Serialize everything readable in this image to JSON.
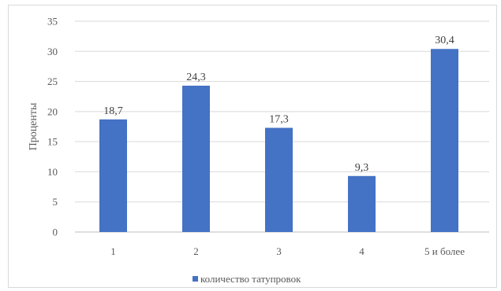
{
  "chart_data": {
    "type": "bar",
    "categories": [
      "1",
      "2",
      "3",
      "4",
      "5 и более"
    ],
    "series": [
      {
        "name": "количество татупровок",
        "values": [
          18.7,
          24.3,
          17.3,
          9.3,
          30.4
        ],
        "color": "#4472c4"
      }
    ],
    "data_labels": [
      "18,7",
      "24,3",
      "17,3",
      "9,3",
      "30,4"
    ],
    "ylabel": "Проценты",
    "xlabel": "",
    "ylim": [
      0,
      35
    ],
    "yticks": [
      0,
      5,
      10,
      15,
      20,
      25,
      30,
      35
    ],
    "grid": true,
    "legend_position": "bottom",
    "colors": {
      "bar": "#4472c4",
      "grid": "#d9d9d9",
      "text": "#595959"
    }
  }
}
